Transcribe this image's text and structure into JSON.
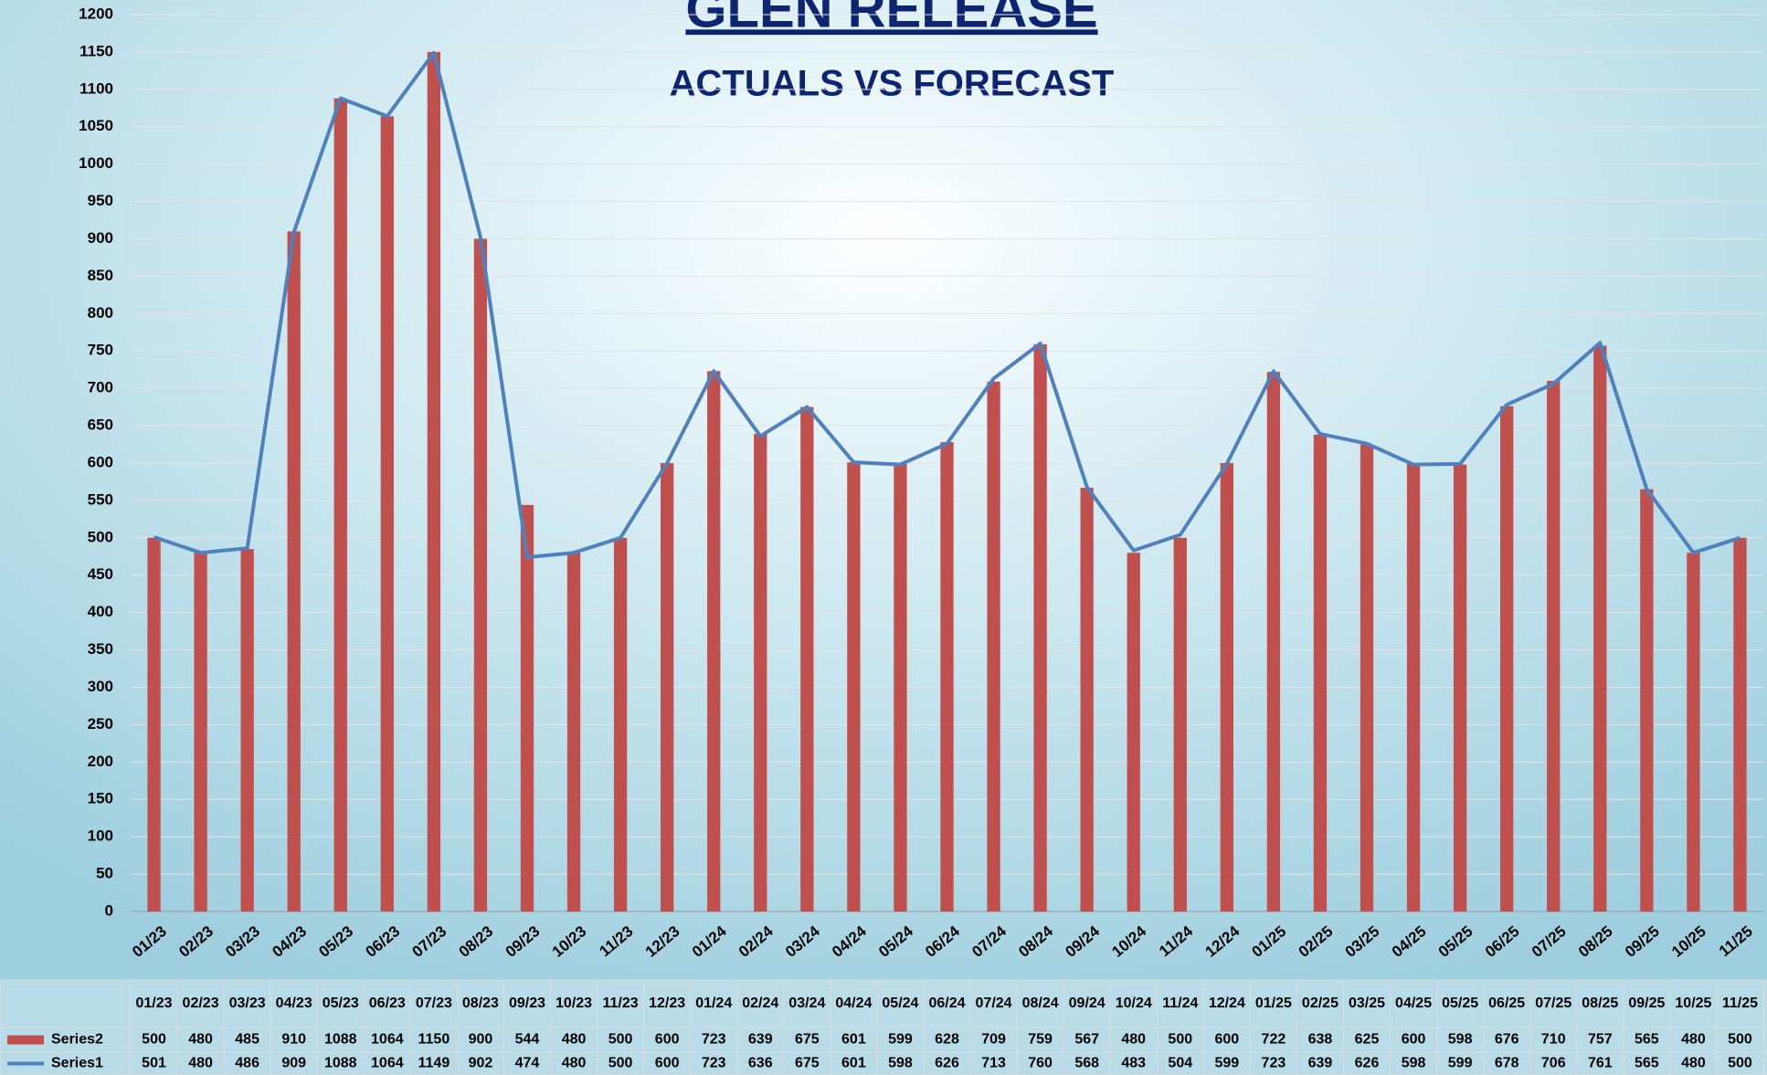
{
  "chart_data": {
    "type": "bar-line",
    "title": "GLEN RELEASE",
    "subtitle": "ACTUALS VS FORECAST",
    "categories": [
      "01/23",
      "02/23",
      "03/23",
      "04/23",
      "05/23",
      "06/23",
      "07/23",
      "08/23",
      "09/23",
      "10/23",
      "11/23",
      "12/23",
      "01/24",
      "02/24",
      "03/24",
      "04/24",
      "05/24",
      "06/24",
      "07/24",
      "08/24",
      "09/24",
      "10/24",
      "11/24",
      "12/24",
      "01/25",
      "02/25",
      "03/25",
      "04/25",
      "05/25",
      "06/25",
      "07/25",
      "08/25",
      "09/25",
      "10/25",
      "11/25"
    ],
    "series": [
      {
        "name": "Series2",
        "type": "bar",
        "color": "#c0504d",
        "values": [
          500,
          480,
          485,
          910,
          1088,
          1064,
          1150,
          900,
          544,
          480,
          500,
          600,
          723,
          639,
          675,
          601,
          599,
          628,
          709,
          759,
          567,
          480,
          500,
          600,
          722,
          638,
          625,
          600,
          598,
          676,
          710,
          757,
          565,
          480,
          500
        ]
      },
      {
        "name": "Series1",
        "type": "line",
        "color": "#4f81bd",
        "values": [
          501,
          480,
          486,
          909,
          1088,
          1064,
          1149,
          902,
          474,
          480,
          500,
          600,
          723,
          636,
          675,
          601,
          598,
          626,
          713,
          760,
          568,
          483,
          504,
          599,
          723,
          639,
          626,
          598,
          599,
          678,
          706,
          761,
          565,
          480,
          500
        ]
      }
    ],
    "ylim": [
      0,
      1200
    ],
    "yticks": [
      0,
      50,
      100,
      150,
      200,
      250,
      300,
      350,
      400,
      450,
      500,
      550,
      600,
      650,
      700,
      750,
      800,
      850,
      900,
      950,
      1000,
      1050,
      1100,
      1150,
      1200
    ],
    "grid": true,
    "data_table": true
  }
}
